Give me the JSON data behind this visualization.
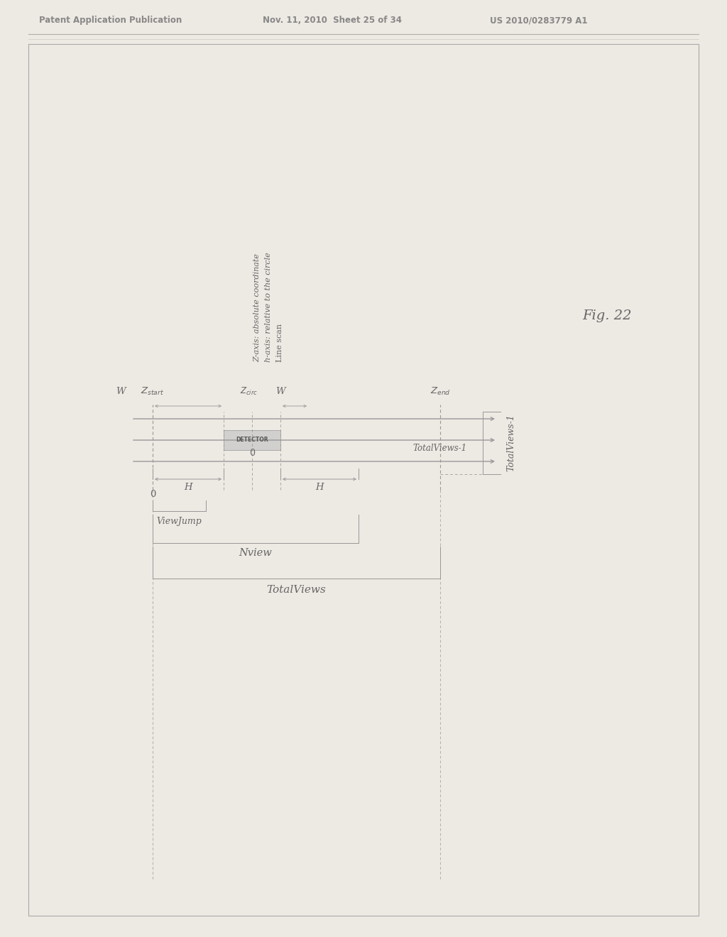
{
  "header_left": "Patent Application Publication",
  "header_mid": "Nov. 11, 2010  Sheet 25 of 34",
  "header_right": "US 2010/0283779 A1",
  "fig_label": "Fig. 22",
  "bg_color": "#ede9e3",
  "line_color": "#999999",
  "text_color": "#666666",
  "header_color": "#888888",
  "detector_fill": "#c8c8c8",
  "z_axis_label": "Z-axis: absolute coordinate",
  "h_axis_label": "h-axis: relative to the circle",
  "line_scan_label": "Line scan",
  "detector_label": "DETECTOR",
  "NView_label": "Nview",
  "ViewJump_label": "ViewJump",
  "TotalViews_label": "TotalViews",
  "TotalViews_m1_label": "TotalViews-1"
}
